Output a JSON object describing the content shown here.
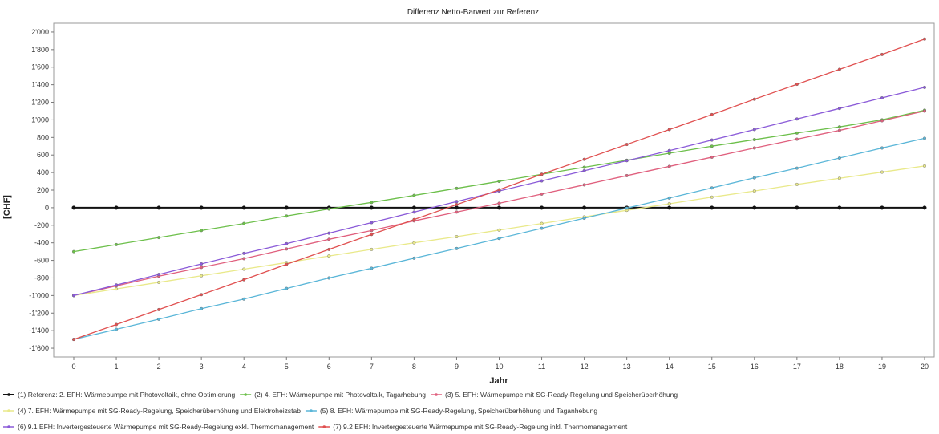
{
  "chart_data": {
    "type": "line",
    "title": "Differenz Netto-Barwert zur Referenz",
    "xlabel": "Jahr",
    "ylabel": "[CHF]",
    "x": [
      0,
      1,
      2,
      3,
      4,
      5,
      6,
      7,
      8,
      9,
      10,
      11,
      12,
      13,
      14,
      15,
      16,
      17,
      18,
      19,
      20
    ],
    "xlim": [
      0,
      20
    ],
    "ylim": [
      -1700,
      2100
    ],
    "yticks": [
      -1600,
      -1400,
      -1200,
      -1000,
      -800,
      -600,
      -400,
      -200,
      0,
      200,
      400,
      600,
      800,
      1000,
      1200,
      1400,
      1600,
      1800,
      2000
    ],
    "ytick_labels": [
      "-1'600",
      "-1'400",
      "-1'200",
      "-1'000",
      "-800",
      "-600",
      "-400",
      "-200",
      "0",
      "200",
      "400",
      "600",
      "800",
      "1'000",
      "1'200",
      "1'400",
      "1'600",
      "1'800",
      "2'000"
    ],
    "grid": false,
    "legend_position": "bottom",
    "series": [
      {
        "name": "(1) Referenz: 2. EFH: Wärmepumpe mit Photovoltaik, ohne Optimierung",
        "color": "#111111",
        "values": [
          0,
          0,
          0,
          0,
          0,
          0,
          0,
          0,
          0,
          0,
          0,
          0,
          0,
          0,
          0,
          0,
          0,
          0,
          0,
          0,
          0
        ]
      },
      {
        "name": "(2) 4. EFH: Wärmepumpe mit Photovoltaik, Tagarhebung",
        "color": "#6cbf4a",
        "values": [
          -500,
          -420,
          -340,
          -260,
          -180,
          -95,
          -15,
          60,
          140,
          220,
          300,
          380,
          460,
          540,
          620,
          700,
          775,
          850,
          920,
          1000,
          1110
        ]
      },
      {
        "name": "(3) 5. EFH: Wärmepumpe mit SG-Ready-Regelung und Speicherüberhöhung",
        "color": "#e0607e",
        "values": [
          -1000,
          -890,
          -780,
          -680,
          -580,
          -470,
          -360,
          -260,
          -150,
          -50,
          50,
          155,
          260,
          365,
          470,
          575,
          680,
          780,
          880,
          990,
          1100
        ]
      },
      {
        "name": "(4) 7. EFH: Wärmepumpe mit SG-Ready-Regelung, Speicherüberhöhung und Elektroheizstab",
        "color": "#e9e98a",
        "values": [
          -1000,
          -925,
          -850,
          -775,
          -700,
          -625,
          -550,
          -475,
          -400,
          -330,
          -255,
          -180,
          -105,
          -30,
          45,
          120,
          190,
          265,
          335,
          405,
          475
        ]
      },
      {
        "name": "(5) 8. EFH: Wärmepumpe mit SG-Ready-Regelung, Speicherüberhöhung und Taganhebung",
        "color": "#5ab6d8",
        "values": [
          -1500,
          -1385,
          -1270,
          -1150,
          -1040,
          -920,
          -800,
          -690,
          -575,
          -465,
          -350,
          -235,
          -120,
          -5,
          110,
          225,
          340,
          450,
          565,
          680,
          790
        ]
      },
      {
        "name": "(6) 9.1 EFH: Invertergesteuerte Wärmepumpe mit SG-Ready-Regelung exkl. Thermomanagement",
        "color": "#8a5ad8",
        "values": [
          -1000,
          -880,
          -760,
          -640,
          -520,
          -410,
          -290,
          -170,
          -50,
          70,
          190,
          305,
          420,
          535,
          650,
          770,
          890,
          1010,
          1130,
          1250,
          1370
        ]
      },
      {
        "name": "(7) 9.2 EFH: Invertergesteuerte Wärmepumpe mit SG-Ready-Regelung inkl. Thermomanagement",
        "color": "#e05050",
        "values": [
          -1500,
          -1330,
          -1160,
          -990,
          -820,
          -645,
          -475,
          -305,
          -135,
          35,
          205,
          380,
          550,
          720,
          890,
          1060,
          1235,
          1405,
          1575,
          1745,
          1920
        ]
      }
    ]
  }
}
